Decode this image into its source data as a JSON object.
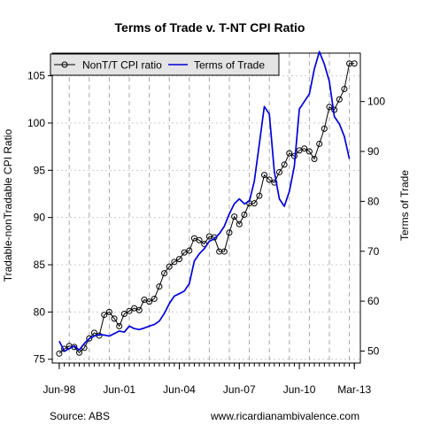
{
  "chart_data": {
    "type": "line",
    "title": "Terms of Trade v. T-NT CPI Ratio",
    "ylabel_left": "Tradable-nonTradable CPI Ratio",
    "ylabel_right": "Terms of Trade",
    "source": "Source: ABS",
    "website": "www.ricardianambivalence.com",
    "legend_position": "top-left",
    "grid": true,
    "x_ticks": [
      {
        "label": "Jun-98",
        "x": 1998.5
      },
      {
        "label": "Jun-01",
        "x": 2001.5
      },
      {
        "label": "Jun-04",
        "x": 2004.5
      },
      {
        "label": "Jun-07",
        "x": 2007.5
      },
      {
        "label": "Jun-10",
        "x": 2010.5
      },
      {
        "label": "Mar-13",
        "x": 2013.25
      }
    ],
    "xlim": [
      1998.15,
      2013.55
    ],
    "y_left": {
      "ticks": [
        75,
        80,
        85,
        90,
        95,
        100,
        105
      ],
      "lim": [
        74.6,
        107.4
      ]
    },
    "y_right": {
      "ticks": [
        50,
        60,
        70,
        80,
        90,
        100
      ],
      "lim": [
        47.6,
        109.7
      ]
    },
    "series": [
      {
        "name": "NonT/T CPI ratio",
        "axis": "left",
        "color": "#000000",
        "marker": "open-circle",
        "x": [
          1998.5,
          1998.75,
          1999.0,
          1999.25,
          1999.5,
          1999.75,
          2000.0,
          2000.25,
          2000.5,
          2000.75,
          2001.0,
          2001.25,
          2001.5,
          2001.75,
          2002.0,
          2002.25,
          2002.5,
          2002.75,
          2003.0,
          2003.25,
          2003.5,
          2003.75,
          2004.0,
          2004.25,
          2004.5,
          2004.75,
          2005.0,
          2005.25,
          2005.5,
          2005.75,
          2006.0,
          2006.25,
          2006.5,
          2006.75,
          2007.0,
          2007.25,
          2007.5,
          2007.75,
          2008.0,
          2008.25,
          2008.5,
          2008.75,
          2009.0,
          2009.25,
          2009.5,
          2009.75,
          2010.0,
          2010.25,
          2010.5,
          2010.75,
          2011.0,
          2011.25,
          2011.5,
          2011.75,
          2012.0,
          2012.25,
          2012.5,
          2012.75,
          2013.0,
          2013.25
        ],
        "values": [
          75.6,
          76.1,
          76.4,
          76.3,
          75.7,
          76.2,
          77.2,
          77.8,
          77.5,
          79.7,
          80.0,
          79.3,
          78.5,
          79.8,
          80.1,
          80.4,
          80.2,
          81.3,
          81.1,
          81.4,
          82.7,
          84.1,
          84.8,
          85.3,
          85.6,
          86.3,
          86.5,
          87.8,
          87.6,
          87.2,
          88.0,
          87.9,
          86.4,
          86.4,
          88.4,
          90.1,
          89.3,
          90.3,
          91.5,
          91.5,
          92.3,
          94.5,
          94.0,
          93.7,
          94.8,
          95.6,
          96.8,
          96.5,
          97.1,
          97.3,
          97.0,
          96.2,
          97.8,
          99.4,
          101.7,
          101.4,
          102.5,
          103.6,
          106.3,
          106.3
        ]
      },
      {
        "name": "Terms of Trade",
        "axis": "right",
        "color": "#0000dd",
        "x": [
          1998.5,
          1998.75,
          1999.0,
          1999.25,
          1999.5,
          1999.75,
          2000.0,
          2000.25,
          2000.5,
          2000.75,
          2001.0,
          2001.25,
          2001.5,
          2001.75,
          2002.0,
          2002.25,
          2002.5,
          2002.75,
          2003.0,
          2003.25,
          2003.5,
          2003.75,
          2004.0,
          2004.25,
          2004.5,
          2004.75,
          2005.0,
          2005.25,
          2005.5,
          2005.75,
          2006.0,
          2006.25,
          2006.5,
          2006.75,
          2007.0,
          2007.25,
          2007.5,
          2007.75,
          2008.0,
          2008.25,
          2008.5,
          2008.75,
          2009.0,
          2009.25,
          2009.5,
          2009.75,
          2010.0,
          2010.25,
          2010.5,
          2010.75,
          2011.0,
          2011.25,
          2011.5,
          2011.75,
          2012.0,
          2012.25,
          2012.5,
          2012.75,
          2013.0
        ],
        "values": [
          52.0,
          50.0,
          50.5,
          51.0,
          50.2,
          51.5,
          52.5,
          53.0,
          53.3,
          53.2,
          53.0,
          53.5,
          54.0,
          53.8,
          55.0,
          54.5,
          54.3,
          54.6,
          55.0,
          55.3,
          56.0,
          57.5,
          59.5,
          61.0,
          61.5,
          62.0,
          63.5,
          68.0,
          69.5,
          70.5,
          72.0,
          72.5,
          73.5,
          75.0,
          77.5,
          79.5,
          80.5,
          79.5,
          80.0,
          84.0,
          91.5,
          99.0,
          97.5,
          86.0,
          80.5,
          79.0,
          82.0,
          87.0,
          98.5,
          100.0,
          101.5,
          106.5,
          110.0,
          107.5,
          104.0,
          97.0,
          95.5,
          93.0,
          88.5
        ]
      }
    ]
  }
}
